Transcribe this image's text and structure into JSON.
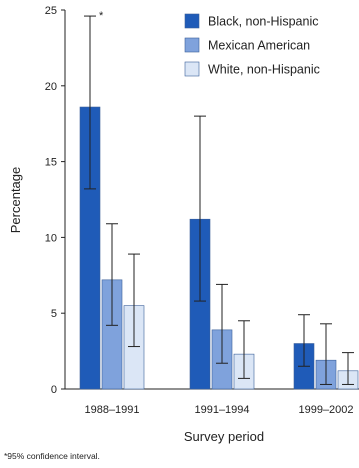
{
  "chart_data": {
    "type": "bar",
    "xlabel": "Survey period",
    "ylabel": "Percentage",
    "ylim": [
      0,
      25
    ],
    "yticks": [
      0,
      5,
      10,
      15,
      20,
      25
    ],
    "categories": [
      "1988–1991",
      "1991–1994",
      "1999–2002"
    ],
    "series": [
      {
        "name": "Black, non-Hispanic",
        "color": "#1f5bb8",
        "values": [
          18.6,
          11.2,
          3.0
        ],
        "ci_low": [
          13.2,
          5.8,
          1.5
        ],
        "ci_high": [
          24.6,
          18.0,
          4.9
        ]
      },
      {
        "name": "Mexican American",
        "color": "#7fa2dc",
        "values": [
          7.2,
          3.9,
          1.9
        ],
        "ci_low": [
          4.2,
          1.7,
          0.3
        ],
        "ci_high": [
          10.9,
          6.9,
          4.3
        ]
      },
      {
        "name": "White, non-Hispanic",
        "color": "#dbe6f6",
        "values": [
          5.5,
          2.3,
          1.2
        ],
        "ci_low": [
          2.8,
          0.7,
          0.3
        ],
        "ci_high": [
          8.9,
          4.5,
          2.4
        ]
      }
    ],
    "ci_marker": "*",
    "legend_position": "top-right",
    "footnote": "*95% confidence interval."
  }
}
